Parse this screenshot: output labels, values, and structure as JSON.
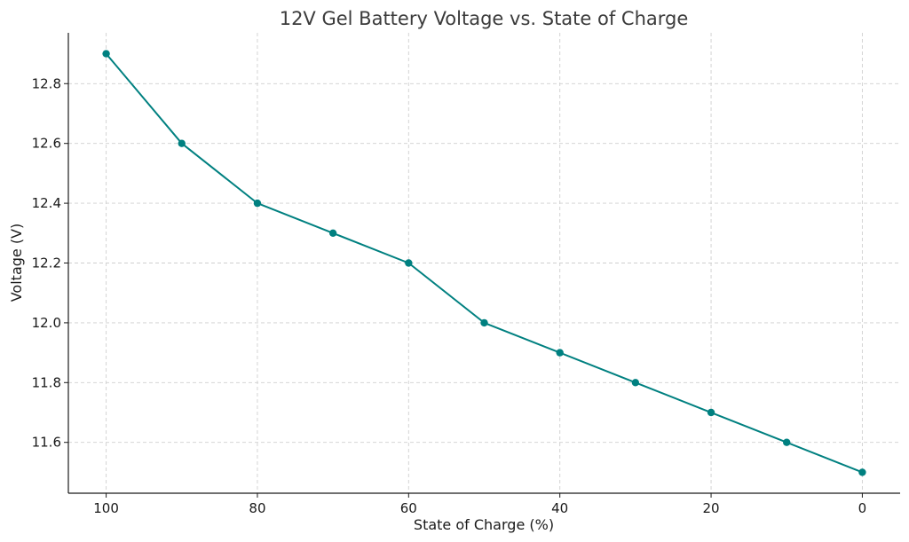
{
  "chart_data": {
    "type": "line",
    "title": "12V Gel Battery Voltage vs. State of Charge",
    "xlabel": "State of Charge (%)",
    "ylabel": "Voltage (V)",
    "x": [
      100,
      90,
      80,
      70,
      60,
      50,
      40,
      30,
      20,
      10,
      0
    ],
    "series": [
      {
        "values": [
          12.9,
          12.6,
          12.4,
          12.3,
          12.2,
          12.0,
          11.9,
          11.8,
          11.7,
          11.6,
          11.5
        ]
      }
    ],
    "xlim": [
      105,
      -5
    ],
    "ylim": [
      11.43,
      12.97
    ],
    "x_inverted": true,
    "xticks": [
      100,
      80,
      60,
      40,
      20,
      0
    ],
    "yticks": [
      11.6,
      11.8,
      12.0,
      12.2,
      12.4,
      12.6,
      12.8
    ],
    "ytick_labels": [
      "11.6",
      "11.8",
      "12.0",
      "12.2",
      "12.4",
      "12.6",
      "12.8"
    ],
    "grid": true,
    "line_color": "#008080",
    "marker": "circle"
  }
}
